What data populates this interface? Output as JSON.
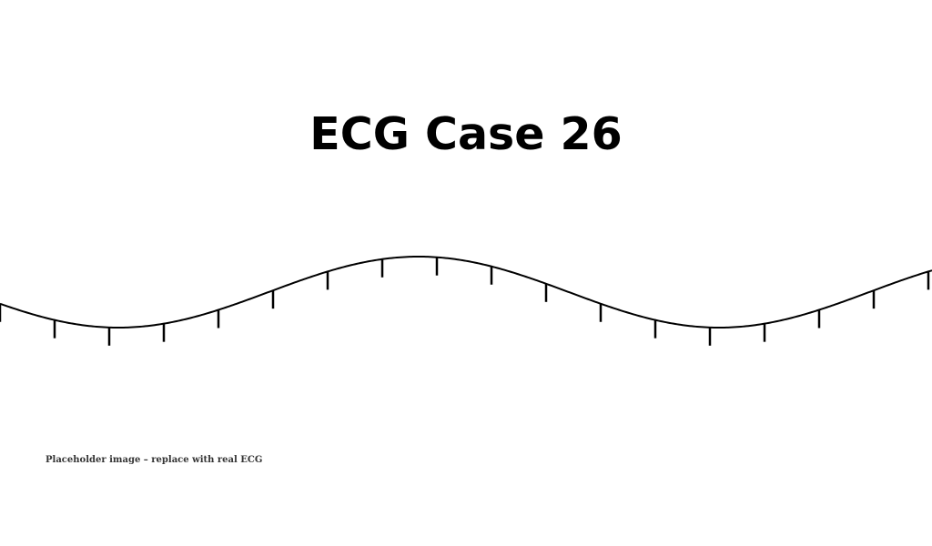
{
  "page": {
    "title": "ECG Case 26",
    "caption": "Placeholder image – replace with real ECG"
  },
  "colors": {
    "background": "#ffffff",
    "trace": "#000000",
    "caption": "#333333"
  }
}
